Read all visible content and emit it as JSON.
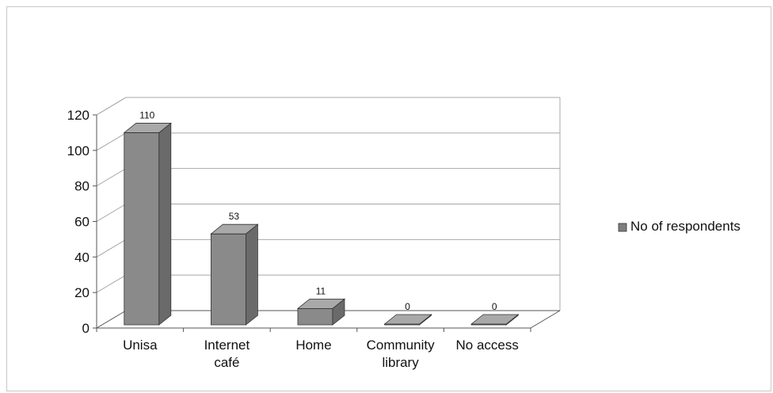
{
  "chart_data": {
    "type": "bar",
    "categories": [
      "Unisa",
      "Internet café",
      "Home",
      "Community library",
      "No access"
    ],
    "category_label_lines": [
      [
        "Unisa"
      ],
      [
        "Internet",
        "café"
      ],
      [
        "Home"
      ],
      [
        "Community",
        "library"
      ],
      [
        "No access"
      ]
    ],
    "series": [
      {
        "name": "No of respondents",
        "values": [
          110,
          53,
          11,
          0,
          0
        ]
      }
    ],
    "data_labels": [
      "110",
      "53",
      "11",
      "0",
      "0"
    ],
    "yticks": [
      "0",
      "20",
      "40",
      "60",
      "80",
      "100",
      "120"
    ],
    "ylim": [
      0,
      120
    ],
    "grid": true,
    "three_d": true,
    "legend_position": "right",
    "colors": {
      "bar_front": "#8a8a8a",
      "bar_side": "#6a6a6a",
      "bar_top": "#a9a9a9",
      "gridline": "#a8a8a8",
      "axis": "#555555",
      "legend_swatch": "#7f7f7f"
    }
  }
}
